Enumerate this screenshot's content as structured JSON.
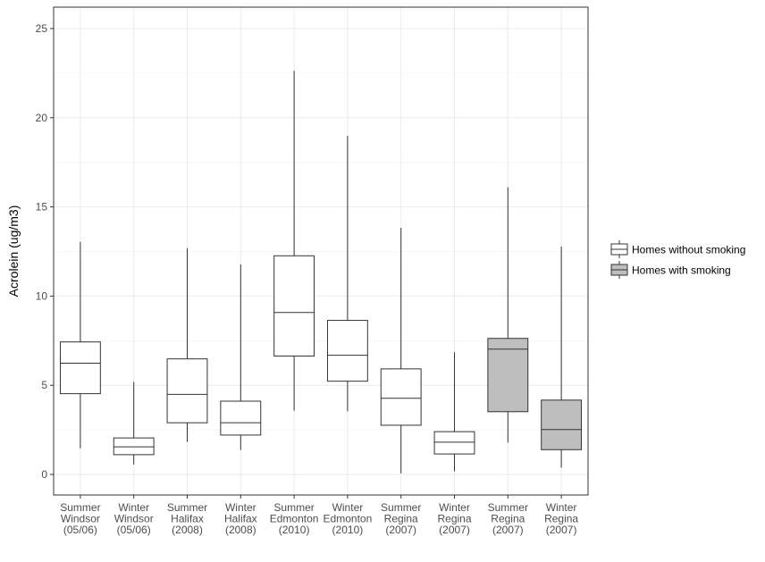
{
  "chart_data": {
    "type": "boxplot",
    "ylabel": "Acrolein (ug/m3)",
    "xlabel": "",
    "ylim": [
      -1.15,
      26.2
    ],
    "yticks": [
      0,
      5,
      10,
      15,
      20,
      25
    ],
    "grid": true,
    "legend_position": "right",
    "legend": [
      {
        "name": "Homes without smoking",
        "fill": "#ffffff"
      },
      {
        "name": "Homes with smoking",
        "fill": "#bebebe"
      }
    ],
    "categories": [
      [
        "Summer",
        "Windsor",
        "(05/06)"
      ],
      [
        "Winter",
        "Windsor",
        "(05/06)"
      ],
      [
        "Summer",
        "Halifax",
        "(2008)"
      ],
      [
        "Winter",
        "Halifax",
        "(2008)"
      ],
      [
        "Summer",
        "Edmonton",
        "(2010)"
      ],
      [
        "Winter",
        "Edmonton",
        "(2010)"
      ],
      [
        "Summer",
        "Regina",
        "(2007)"
      ],
      [
        "Winter",
        "Regina",
        "(2007)"
      ],
      [
        "Summer",
        "Regina",
        "(2007)"
      ],
      [
        "Winter",
        "Regina",
        "(2007)"
      ]
    ],
    "boxes": [
      {
        "group": 0,
        "min": 1.47,
        "q1": 4.53,
        "median": 6.24,
        "q3": 7.43,
        "max": 13.04
      },
      {
        "group": 0,
        "min": 0.56,
        "q1": 1.11,
        "median": 1.55,
        "q3": 2.05,
        "max": 5.19
      },
      {
        "group": 0,
        "min": 1.83,
        "q1": 2.9,
        "median": 4.49,
        "q3": 6.48,
        "max": 12.68
      },
      {
        "group": 0,
        "min": 1.37,
        "q1": 2.21,
        "median": 2.9,
        "q3": 4.11,
        "max": 11.78
      },
      {
        "group": 0,
        "min": 3.58,
        "q1": 6.64,
        "median": 9.08,
        "q3": 12.26,
        "max": 22.63
      },
      {
        "group": 0,
        "min": 3.54,
        "q1": 5.23,
        "median": 6.68,
        "q3": 8.64,
        "max": 18.98
      },
      {
        "group": 0,
        "min": 0.06,
        "q1": 2.76,
        "median": 4.27,
        "q3": 5.92,
        "max": 13.83
      },
      {
        "group": 0,
        "min": 0.18,
        "q1": 1.15,
        "median": 1.81,
        "q3": 2.4,
        "max": 6.86
      },
      {
        "group": 1,
        "min": 1.79,
        "q1": 3.52,
        "median": 7.03,
        "q3": 7.63,
        "max": 16.1
      },
      {
        "group": 1,
        "min": 0.38,
        "q1": 1.39,
        "median": 2.52,
        "q3": 4.17,
        "max": 12.78
      }
    ]
  }
}
